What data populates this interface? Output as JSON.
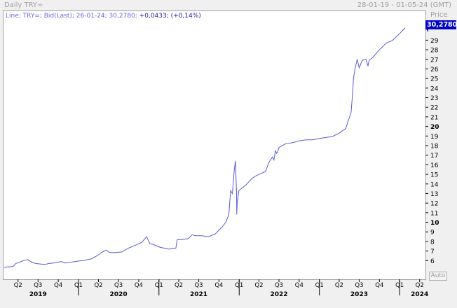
{
  "window": {
    "title": "Daily TRY=",
    "date_range": "28-01-19 - 01-05-24 (GMT)"
  },
  "legend": {
    "series_desc": "Line; TRY=; Bid(Last); 26-01-24; 30,2780;",
    "change": "+0,0433;",
    "change_pct": "(+0,14%)"
  },
  "price_axis": {
    "header": "Price",
    "last_value": "30,2780",
    "auto_label": "Auto"
  },
  "colors": {
    "line": "#5a5ad8",
    "last_box": "#0000cc"
  },
  "chart_data": {
    "type": "line",
    "series": [
      {
        "x": [
          "2019-01-28",
          "2019-02-15",
          "2019-03-10",
          "2019-03-22",
          "2019-04-05",
          "2019-04-25",
          "2019-05-15",
          "2019-06-01",
          "2019-06-20",
          "2019-07-10",
          "2019-08-01",
          "2019-08-20",
          "2019-09-10",
          "2019-10-01",
          "2019-10-15",
          "2019-11-01",
          "2019-12-01",
          "2020-01-01",
          "2020-02-01",
          "2020-03-01",
          "2020-03-25",
          "2020-04-15",
          "2020-05-07",
          "2020-05-20",
          "2020-06-15",
          "2020-07-15",
          "2020-08-15",
          "2020-09-15",
          "2020-10-15",
          "2020-11-06",
          "2020-11-20",
          "2020-12-15",
          "2021-01-05",
          "2021-02-15",
          "2021-03-19",
          "2021-03-25",
          "2021-04-15",
          "2021-05-15",
          "2021-06-01",
          "2021-06-15",
          "2021-07-15",
          "2021-08-15",
          "2021-09-15",
          "2021-10-15",
          "2021-11-01",
          "2021-11-15",
          "2021-11-23",
          "2021-12-01",
          "2021-12-10",
          "2021-12-15",
          "2021-12-20",
          "2021-12-21",
          "2021-12-23",
          "2021-12-31",
          "2022-01-10",
          "2022-02-01",
          "2022-03-01",
          "2022-03-15",
          "2022-04-01",
          "2022-05-01",
          "2022-05-15",
          "2022-06-01",
          "2022-06-08",
          "2022-06-15",
          "2022-06-20",
          "2022-06-24",
          "2022-07-01",
          "2022-08-01",
          "2022-09-01",
          "2022-10-01",
          "2022-11-01",
          "2022-12-01",
          "2023-01-01",
          "2023-02-01",
          "2023-03-01",
          "2023-04-01",
          "2023-05-01",
          "2023-05-25",
          "2023-06-01",
          "2023-06-05",
          "2023-06-12",
          "2023-06-22",
          "2023-07-01",
          "2023-07-15",
          "2023-08-01",
          "2023-08-10",
          "2023-08-15",
          "2023-09-01",
          "2023-10-01",
          "2023-11-01",
          "2023-12-01",
          "2024-01-01",
          "2024-01-26"
        ],
        "y": [
          5.3,
          5.35,
          5.4,
          5.7,
          5.8,
          6.0,
          6.1,
          5.85,
          5.7,
          5.65,
          5.6,
          5.7,
          5.75,
          5.85,
          5.9,
          5.75,
          5.85,
          5.95,
          6.05,
          6.2,
          6.5,
          6.85,
          7.1,
          6.85,
          6.85,
          6.9,
          7.3,
          7.6,
          7.9,
          8.5,
          7.8,
          7.6,
          7.4,
          7.2,
          7.3,
          8.2,
          8.2,
          8.3,
          8.7,
          8.6,
          8.6,
          8.5,
          8.8,
          9.5,
          10.0,
          10.8,
          13.3,
          13.0,
          15.5,
          16.4,
          13.0,
          10.8,
          12.0,
          13.3,
          13.5,
          13.9,
          14.6,
          14.8,
          15.0,
          15.3,
          16.2,
          16.8,
          16.5,
          17.5,
          17.2,
          17.3,
          17.8,
          18.2,
          18.3,
          18.5,
          18.6,
          18.6,
          18.75,
          18.85,
          18.95,
          19.3,
          19.8,
          21.5,
          23.5,
          25.0,
          26.0,
          27.0,
          26.1,
          26.9,
          27.0,
          26.3,
          26.9,
          27.2,
          28.0,
          28.7,
          29.0,
          29.7,
          30.278
        ]
      }
    ],
    "ylim": [
      5.0,
      31.0
    ],
    "y_ticks": [
      6,
      7,
      8,
      9,
      10,
      11,
      12,
      13,
      14,
      15,
      16,
      17,
      18,
      19,
      20,
      21,
      22,
      23,
      24,
      25,
      26,
      27,
      28,
      29
    ],
    "quarter_ticks": [
      {
        "label": "Q2",
        "date": "2019-04-01"
      },
      {
        "label": "Q3",
        "date": "2019-07-01"
      },
      {
        "label": "Q4",
        "date": "2019-10-01"
      },
      {
        "label": "Q1",
        "date": "2020-01-01"
      },
      {
        "label": "Q2",
        "date": "2020-04-01"
      },
      {
        "label": "Q3",
        "date": "2020-07-01"
      },
      {
        "label": "Q4",
        "date": "2020-10-01"
      },
      {
        "label": "Q1",
        "date": "2021-01-01"
      },
      {
        "label": "Q2",
        "date": "2021-04-01"
      },
      {
        "label": "Q3",
        "date": "2021-07-01"
      },
      {
        "label": "Q4",
        "date": "2021-10-01"
      },
      {
        "label": "Q1",
        "date": "2022-01-01"
      },
      {
        "label": "Q2",
        "date": "2022-04-01"
      },
      {
        "label": "Q3",
        "date": "2022-07-01"
      },
      {
        "label": "Q4",
        "date": "2022-10-01"
      },
      {
        "label": "Q1",
        "date": "2023-01-01"
      },
      {
        "label": "Q2",
        "date": "2023-04-01"
      },
      {
        "label": "Q3",
        "date": "2023-07-01"
      },
      {
        "label": "Q4",
        "date": "2023-10-01"
      },
      {
        "label": "Q1",
        "date": "2024-01-01"
      },
      {
        "label": "Q2",
        "date": "2024-04-01"
      }
    ],
    "year_ticks": [
      {
        "label": "2019",
        "date": "2019-07-01"
      },
      {
        "label": "2020",
        "date": "2020-07-01"
      },
      {
        "label": "2021",
        "date": "2021-07-01"
      },
      {
        "label": "2022",
        "date": "2022-07-01"
      },
      {
        "label": "2023",
        "date": "2023-07-01"
      },
      {
        "label": "2024",
        "date": "2024-04-01"
      }
    ],
    "year_separators": [
      "2020-01-01",
      "2021-01-01",
      "2022-01-01",
      "2023-01-01",
      "2024-01-01"
    ],
    "grid": false
  }
}
